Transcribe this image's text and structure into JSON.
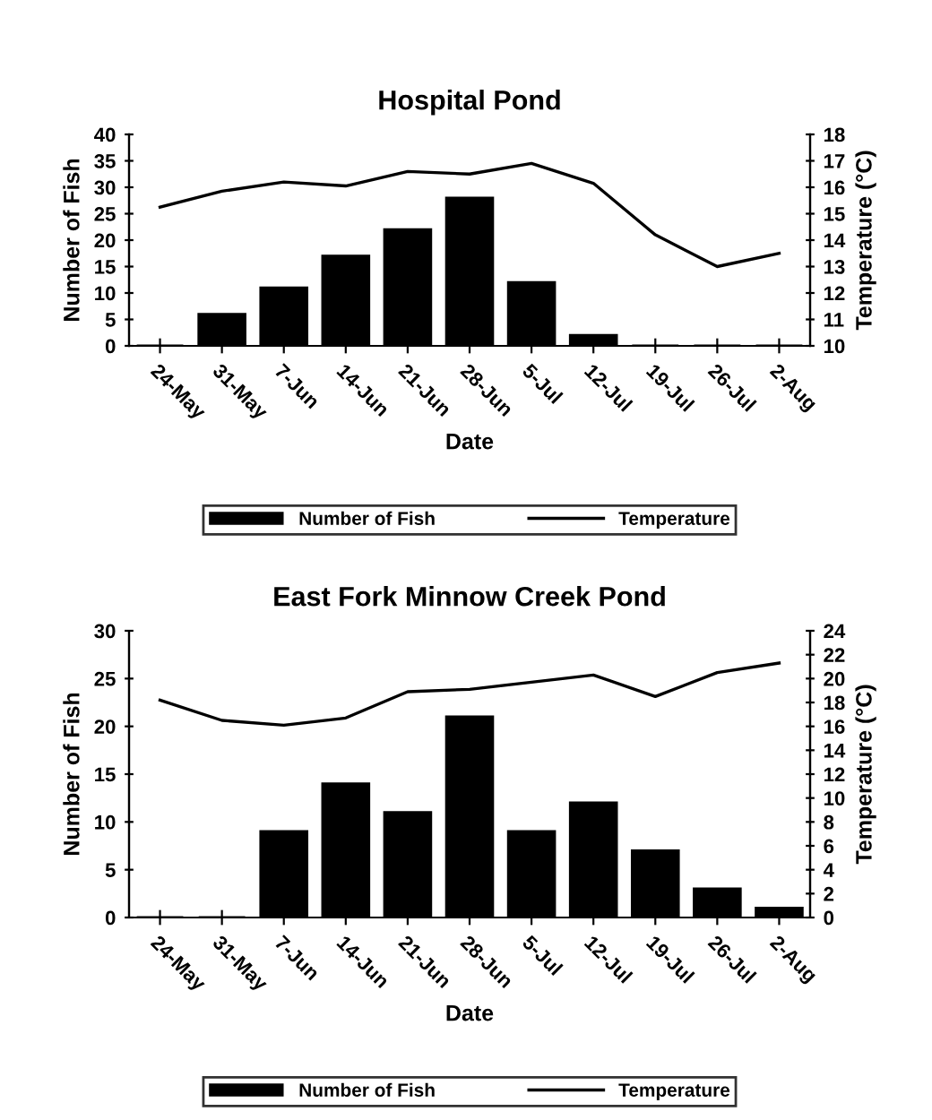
{
  "chart_data": [
    {
      "type": "bar",
      "title": "Hospital Pond",
      "xlabel": "Date",
      "ylabel": "Number of Fish",
      "y2label": "Temperature (°C)",
      "categories": [
        "24-May",
        "31-May",
        "7-Jun",
        "14-Jun",
        "21-Jun",
        "28-Jun",
        "5-Jul",
        "12-Jul",
        "19-Jul",
        "26-Jul",
        "2-Aug"
      ],
      "series": [
        {
          "name": "Number of Fish",
          "color": "#000000",
          "values": [
            0,
            6,
            11,
            17,
            22,
            28,
            12,
            2,
            0,
            0,
            0
          ]
        },
        {
          "name": "Temperature",
          "type": "line",
          "axis": "y2",
          "color": "#000000",
          "values": [
            15.25,
            15.85,
            16.2,
            16.05,
            16.6,
            16.5,
            16.9,
            16.15,
            14.2,
            13.0,
            13.5
          ]
        }
      ],
      "ylim": [
        0,
        40
      ],
      "yticks": [
        0,
        5,
        10,
        15,
        20,
        25,
        30,
        35,
        40
      ],
      "y2lim": [
        10,
        18
      ],
      "y2ticks": [
        10,
        11,
        12,
        13,
        14,
        15,
        16,
        17,
        18
      ],
      "grid": false,
      "legend": "bottom",
      "marker": "none",
      "line_style": "solid"
    },
    {
      "type": "bar",
      "title": "East Fork Minnow Creek Pond",
      "xlabel": "Date",
      "ylabel": "Number of Fish",
      "y2label": "Temperature (°C)",
      "categories": [
        "24-May",
        "31-May",
        "7-Jun",
        "14-Jun",
        "21-Jun",
        "28-Jun",
        "5-Jul",
        "12-Jul",
        "19-Jul",
        "26-Jul",
        "2-Aug"
      ],
      "series": [
        {
          "name": "Number of Fish",
          "color": "#000000",
          "values": [
            0,
            0,
            9,
            14,
            11,
            21,
            9,
            12,
            7,
            3,
            1
          ]
        },
        {
          "name": "Temperature",
          "type": "line",
          "axis": "y2",
          "color": "#000000",
          "values": [
            18.2,
            16.5,
            16.1,
            16.7,
            18.9,
            19.1,
            19.7,
            20.3,
            18.5,
            20.5,
            21.3
          ]
        }
      ],
      "ylim": [
        0,
        30
      ],
      "yticks": [
        0,
        5,
        10,
        15,
        20,
        25,
        30
      ],
      "y2lim": [
        0,
        24
      ],
      "y2ticks": [
        0,
        2,
        4,
        6,
        8,
        10,
        12,
        14,
        16,
        18,
        20,
        22,
        24
      ],
      "grid": false,
      "legend": "bottom",
      "marker": "none",
      "line_style": "solid"
    }
  ]
}
